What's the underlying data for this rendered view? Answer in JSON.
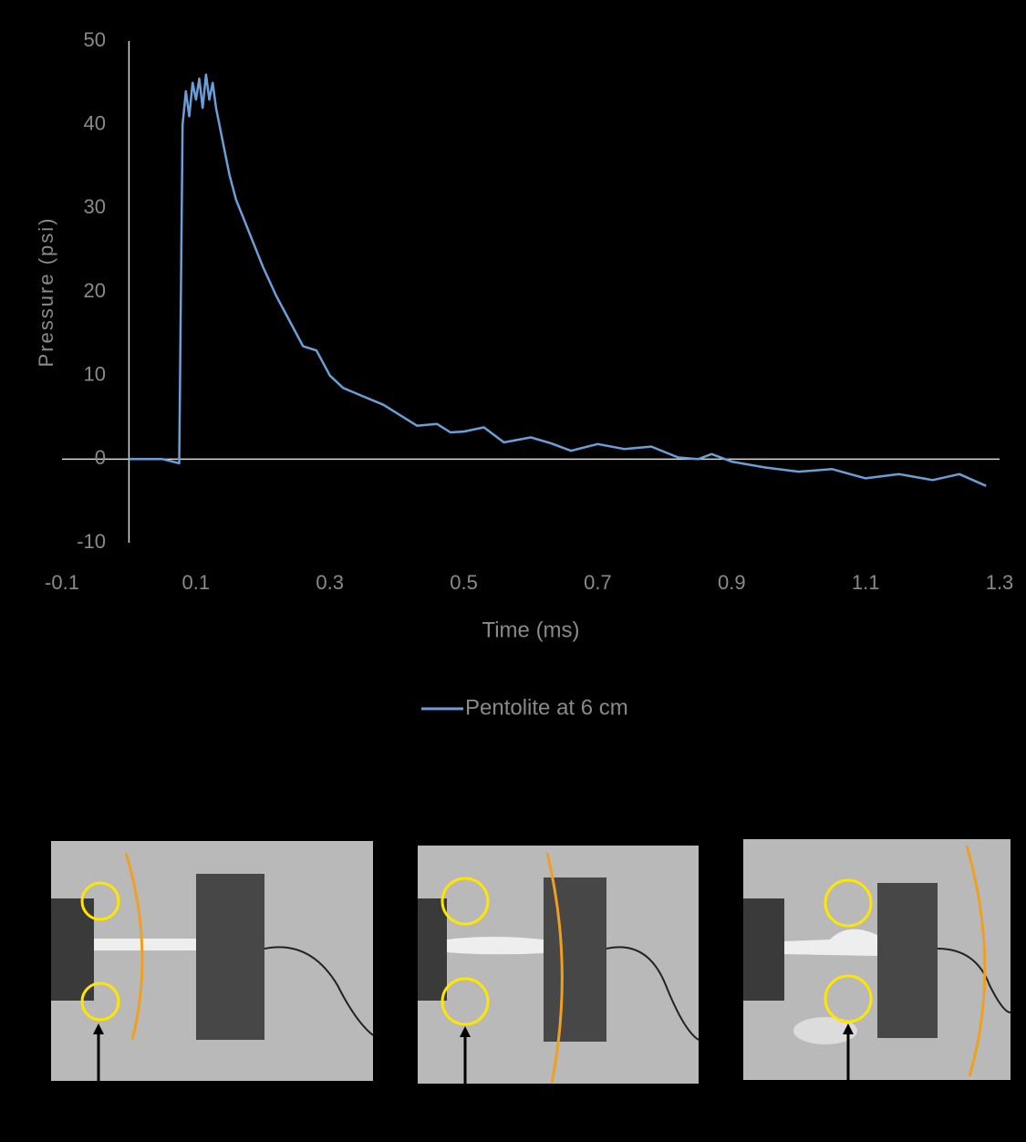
{
  "chart_data": {
    "type": "line",
    "x_label": "Time (ms)",
    "y_label": "Pressure (psi)",
    "x": [
      0,
      0.05,
      0.075,
      0.08,
      0.085,
      0.09,
      0.095,
      0.1,
      0.105,
      0.11,
      0.115,
      0.12,
      0.125,
      0.13,
      0.14,
      0.15,
      0.16,
      0.17,
      0.18,
      0.2,
      0.22,
      0.24,
      0.26,
      0.28,
      0.3,
      0.32,
      0.35,
      0.38,
      0.4,
      0.43,
      0.46,
      0.48,
      0.5,
      0.53,
      0.56,
      0.6,
      0.63,
      0.66,
      0.7,
      0.74,
      0.78,
      0.82,
      0.85,
      0.87,
      0.9,
      0.95,
      1.0,
      1.05,
      1.1,
      1.15,
      1.2,
      1.24,
      1.28
    ],
    "series": [
      {
        "name": "Pentolite at 6 cm",
        "color": "#6a9fd8",
        "values": [
          0,
          0,
          -0.5,
          40,
          44,
          41,
          45,
          43,
          45.5,
          42,
          46,
          43,
          45,
          42,
          38,
          34,
          31,
          29,
          27,
          23,
          19.5,
          16.5,
          13.5,
          13,
          10,
          8.5,
          7.5,
          6.5,
          5.5,
          4,
          4.2,
          3.2,
          3.3,
          3.8,
          2,
          2.6,
          1.9,
          1,
          1.8,
          1.2,
          1.5,
          0.2,
          0,
          0.6,
          -0.3,
          -1,
          -1.5,
          -1.2,
          -2.3,
          -1.8,
          -2.5,
          -1.8,
          -3.2
        ]
      }
    ],
    "xlim": [
      -0.1,
      1.3
    ],
    "xticks": [
      -0.1,
      0.1,
      0.3,
      0.5,
      0.7,
      0.9,
      1.1,
      1.3
    ],
    "ylim": [
      -10,
      50
    ],
    "yticks": [
      -10,
      0,
      10,
      20,
      30,
      40,
      50
    ],
    "grid": false,
    "legend": "bottom"
  }
}
